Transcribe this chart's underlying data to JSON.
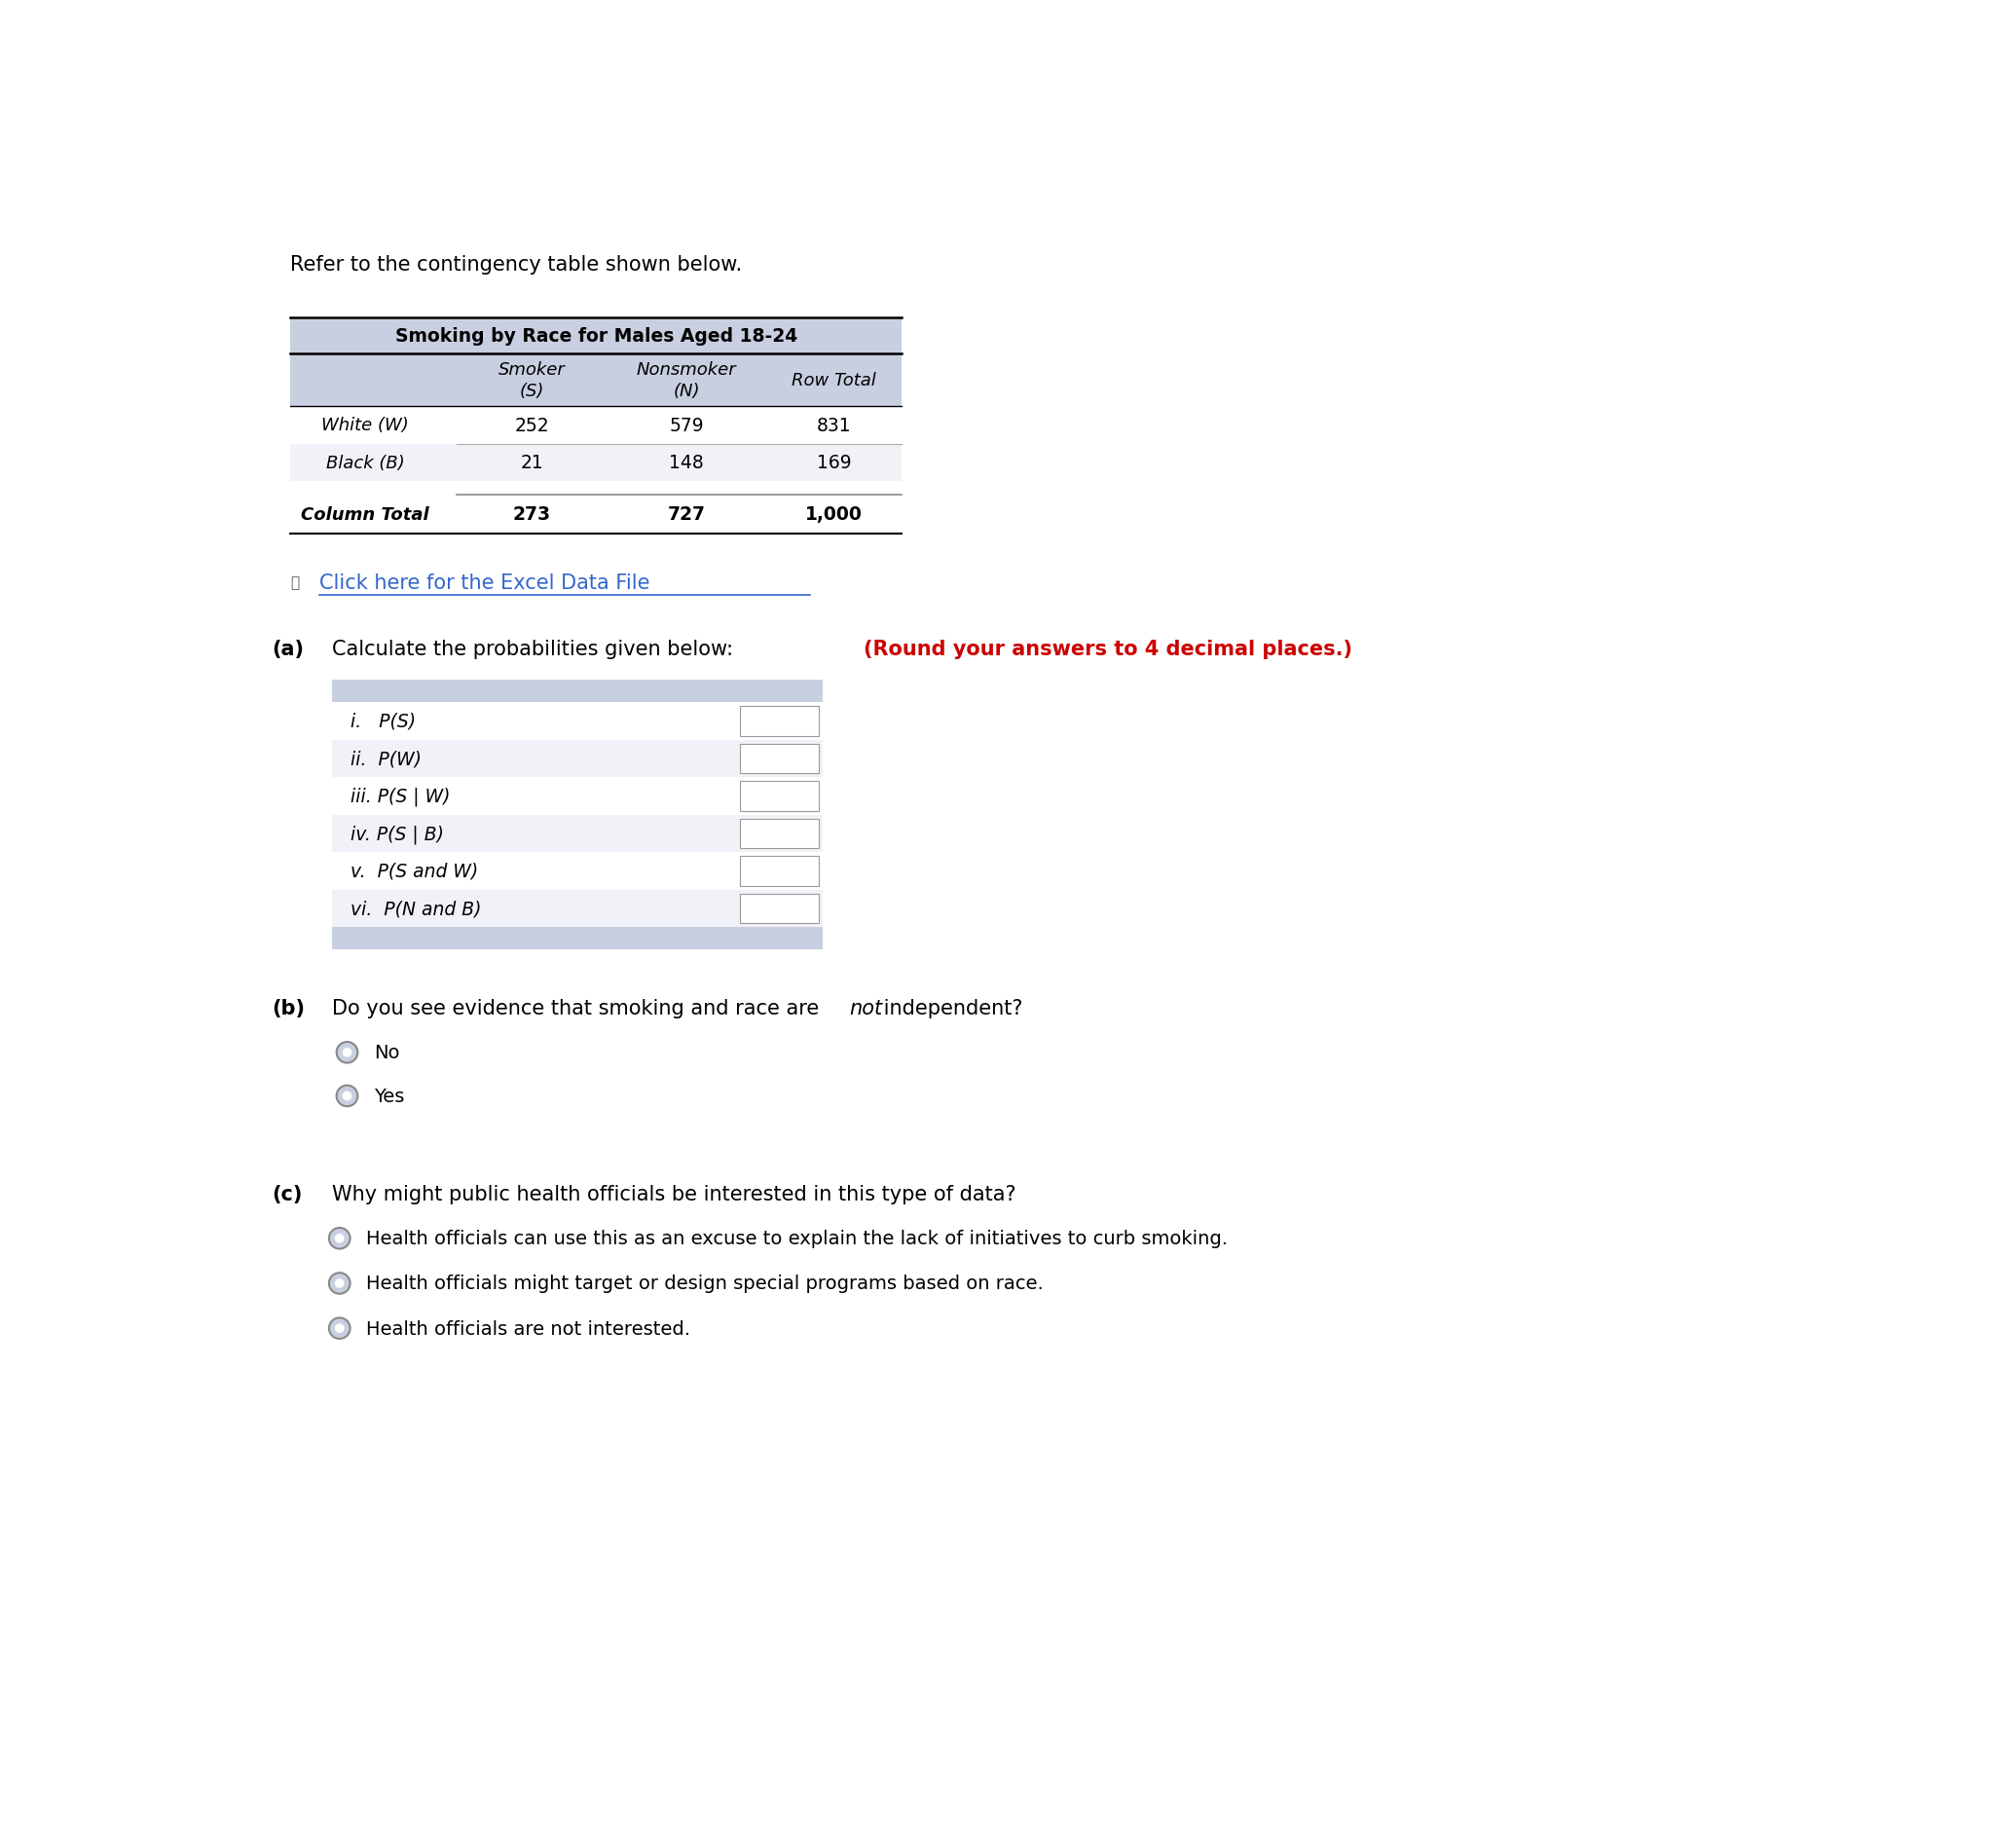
{
  "title_text": "Refer to the contingency table shown below.",
  "table_title": "Smoking by Race for Males Aged 18-24",
  "col_headers": [
    "Smoker\n(S)",
    "Nonsmoker\n(N)",
    "Row Total"
  ],
  "row_headers": [
    "White (W)",
    "Black (B)"
  ],
  "table_data": [
    [
      "252",
      "579",
      "831"
    ],
    [
      "21",
      "148",
      "169"
    ]
  ],
  "col_total_label": "Column Total",
  "col_totals": [
    "273",
    "727",
    "1,000"
  ],
  "excel_link_text": "Click here for the Excel Data File",
  "part_a_text_black": "Calculate the probabilities given below: ",
  "part_a_text_red": "(Round your answers to 4 decimal places.)",
  "prob_labels": [
    "i.   P(S)",
    "ii.  P(W)",
    "iii. P(S | W)",
    "iv. P(S | B)",
    "v.  P(S and W)",
    "vi.  P(N and B)"
  ],
  "part_b_text_1": "Do you see evidence that smoking and race are ",
  "part_b_text_italic": "not",
  "part_b_text_2": " independent?",
  "part_b_options": [
    "No",
    "Yes"
  ],
  "part_c_text": "Why might public health officials be interested in this type of data?",
  "part_c_options": [
    "Health officials can use this as an excuse to explain the lack of initiatives to curb smoking.",
    "Health officials might target or design special programs based on race.",
    "Health officials are not interested."
  ],
  "bg_color": "#ffffff",
  "table_header_bg": "#c8cfe0",
  "table_row_bg_alt": "#f0f2f7",
  "table_row_bg": "#ffffff",
  "text_color_dark": "#2c3e50",
  "text_color_blue": "#3366cc",
  "text_color_red": "#cc0000",
  "radio_color": "#c8cfe0"
}
